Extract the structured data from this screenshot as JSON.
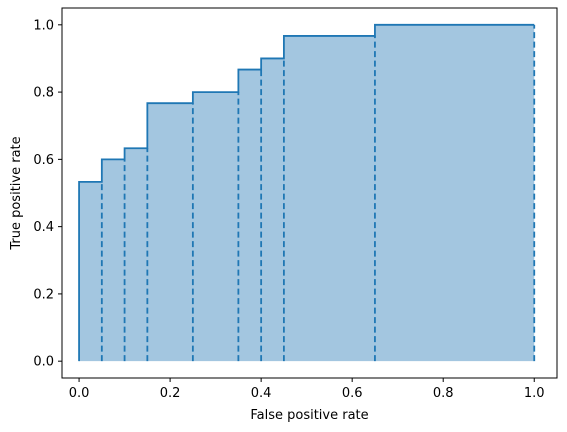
{
  "chart_data": {
    "type": "area",
    "title": "",
    "xlabel": "False positive rate",
    "ylabel": "True positive rate",
    "xlim": [
      -0.0375,
      1.05
    ],
    "ylim": [
      -0.05,
      1.05
    ],
    "xticks": [
      0.0,
      0.2,
      0.4,
      0.6,
      0.8,
      1.0
    ],
    "yticks": [
      0.0,
      0.2,
      0.4,
      0.6,
      0.8,
      1.0
    ],
    "xtick_labels": [
      "0.0",
      "0.2",
      "0.4",
      "0.6",
      "0.8",
      "1.0"
    ],
    "ytick_labels": [
      "0.0",
      "0.2",
      "0.4",
      "0.6",
      "0.8",
      "1.0"
    ],
    "grid": false,
    "legend": null,
    "series": [
      {
        "step": "post",
        "fpr": [
          0.0,
          0.05,
          0.1,
          0.15,
          0.25,
          0.35,
          0.4,
          0.45,
          0.65,
          1.0
        ],
        "tpr": [
          0.533,
          0.6,
          0.633,
          0.767,
          0.8,
          0.867,
          0.9,
          0.967,
          1.0,
          1.0
        ]
      }
    ],
    "colors": {
      "line": "#1f77b4",
      "fill": "#a3c6e0",
      "axis": "#000000"
    }
  }
}
